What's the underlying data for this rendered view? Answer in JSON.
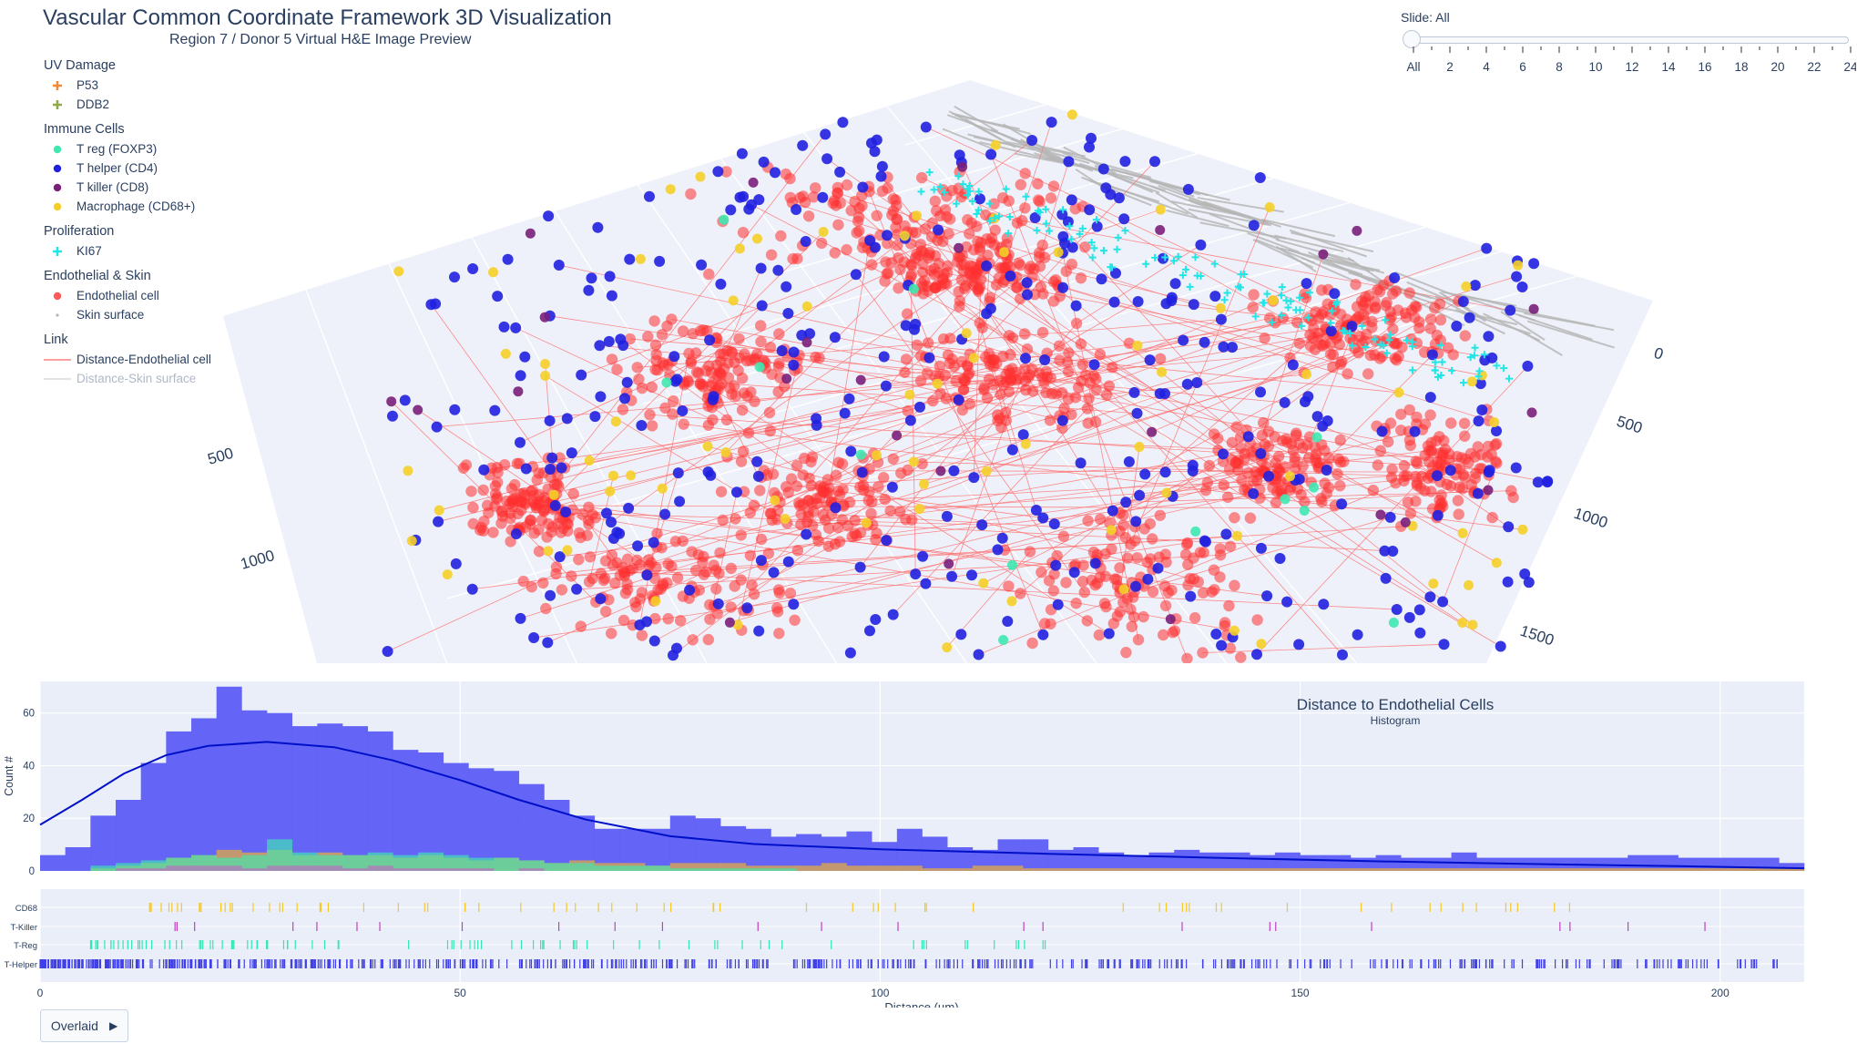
{
  "header": {
    "title": "Vascular Common Coordinate Framework 3D Visualization",
    "subtitle": "Region 7 / Donor 5  Virtual H&E Image Preview"
  },
  "colors": {
    "p53": "#ef8a3a",
    "ddb2": "#8fa84a",
    "treg": "#3ee8b0",
    "thelper": "#2020e0",
    "tkiller": "#7a1f7a",
    "macrophage": "#f5cf28",
    "ki67": "#22e6e6",
    "endothelial": "#ff3030",
    "skin": "#b5b5b5",
    "hist_main": "#5d5df5",
    "kde_line": "#0010c8"
  },
  "legend": [
    {
      "title": "UV Damage",
      "items": [
        {
          "label": "P53",
          "icon": "plus-icon",
          "color": "#ef8a3a"
        },
        {
          "label": "DDB2",
          "icon": "plus-icon",
          "color": "#8fa84a"
        }
      ]
    },
    {
      "title": "Immune Cells",
      "items": [
        {
          "label": "T reg (FOXP3)",
          "icon": "dot-icon",
          "color": "#3ee8b0"
        },
        {
          "label": "T helper (CD4)",
          "icon": "dot-icon",
          "color": "#2020e0"
        },
        {
          "label": "T killer (CD8)",
          "icon": "dot-icon",
          "color": "#7a1f7a"
        },
        {
          "label": "Macrophage (CD68+)",
          "icon": "dot-icon",
          "color": "#f5cf28"
        }
      ]
    },
    {
      "title": "Proliferation",
      "items": [
        {
          "label": "KI67",
          "icon": "plus-icon",
          "color": "#22e6e6"
        }
      ]
    },
    {
      "title": "Endothelial & Skin",
      "items": [
        {
          "label": "Endothelial cell",
          "icon": "dot-icon",
          "color": "#ff5a5a"
        },
        {
          "label": "Skin surface",
          "icon": "small-dot-icon",
          "color": "#b5b5b5"
        }
      ]
    },
    {
      "title": "Link",
      "items": [
        {
          "label": "Distance-Endothelial cell",
          "icon": "line-icon",
          "color": "#ff8080"
        },
        {
          "label": "Distance-Skin surface",
          "icon": "line-icon",
          "color": "#d8d8d8",
          "faded": true
        }
      ]
    }
  ],
  "slider": {
    "label": "Slide: All",
    "ticks": [
      "All",
      "2",
      "4",
      "6",
      "8",
      "10",
      "12",
      "14",
      "16",
      "18",
      "20",
      "22",
      "24"
    ]
  },
  "overlay_button": {
    "label": "Overlaid"
  },
  "chart_data": [
    {
      "type": "scatter",
      "name": "3d-cell-scatter",
      "axis_ticks_left": [
        "500",
        "1000"
      ],
      "axis_ticks_right": [
        "0",
        "500",
        "1000",
        "1500"
      ],
      "series": [
        {
          "name": "Endothelial cell",
          "color": "#ff3030"
        },
        {
          "name": "T helper (CD4)",
          "color": "#2020e0"
        },
        {
          "name": "Macrophage (CD68+)",
          "color": "#f5cf28"
        },
        {
          "name": "T reg (FOXP3)",
          "color": "#3ee8b0"
        },
        {
          "name": "T killer (CD8)",
          "color": "#7a1f7a"
        },
        {
          "name": "KI67",
          "color": "#22e6e6"
        },
        {
          "name": "Skin surface",
          "color": "#b5b5b5"
        }
      ]
    },
    {
      "type": "bar",
      "name": "histogram",
      "title": "Distance to Endothelial Cells",
      "subtitle": "Histogram",
      "xlabel": "Distance (µm)",
      "ylabel": "Count #",
      "xlim": [
        0,
        210
      ],
      "ylim": [
        0,
        72
      ],
      "yticks": [
        0,
        20,
        40,
        60
      ],
      "xticks": [
        0,
        50,
        100,
        150,
        200
      ],
      "bin_width": 3,
      "main_counts": [
        6,
        9,
        21,
        27,
        41,
        53,
        58,
        70,
        61,
        60,
        55,
        56,
        55,
        53,
        46,
        45,
        41,
        39,
        38,
        33,
        27,
        21,
        16,
        16,
        16,
        21,
        20,
        17,
        16,
        13,
        14,
        13,
        15,
        11,
        16,
        13,
        9,
        8,
        12,
        12,
        8,
        9,
        7,
        6,
        7,
        8,
        7,
        7,
        6,
        7,
        6,
        6,
        5,
        6,
        5,
        5,
        7,
        5,
        5,
        5,
        5,
        5,
        5,
        6,
        6,
        5,
        5,
        5,
        5,
        3
      ],
      "kde": [
        [
          0,
          17.5
        ],
        [
          5,
          27
        ],
        [
          10,
          37
        ],
        [
          15,
          44
        ],
        [
          20,
          47.5
        ],
        [
          27,
          49
        ],
        [
          35,
          47
        ],
        [
          42,
          42
        ],
        [
          50,
          34.5
        ],
        [
          57,
          27
        ],
        [
          65,
          19.5
        ],
        [
          75,
          13.2
        ],
        [
          85,
          10.2
        ],
        [
          100,
          8.2
        ],
        [
          120,
          6.5
        ],
        [
          140,
          5
        ],
        [
          160,
          3.6
        ],
        [
          180,
          2.5
        ],
        [
          195,
          1.8
        ],
        [
          210,
          1
        ]
      ],
      "overlays": [
        {
          "name": "CD68",
          "color": "#f5b428",
          "counts": [
            0,
            0,
            1,
            2,
            3,
            5,
            6,
            8,
            7,
            8,
            6,
            7,
            6,
            6,
            5,
            6,
            5,
            4,
            5,
            4,
            3,
            4,
            3,
            3,
            2,
            3,
            3,
            3,
            2,
            2,
            2,
            3,
            2,
            2,
            2,
            1,
            1,
            2,
            2,
            1,
            1,
            1,
            1,
            1,
            1,
            1,
            1,
            1,
            1,
            1,
            1,
            1,
            1,
            1,
            1,
            1,
            1,
            1,
            1,
            1,
            1,
            1,
            1,
            1,
            1,
            1,
            1,
            1,
            1,
            1
          ]
        },
        {
          "name": "T-Reg",
          "color": "#3ee8b0",
          "counts": [
            0,
            0,
            2,
            3,
            4,
            5,
            6,
            5,
            6,
            12,
            7,
            6,
            6,
            7,
            6,
            7,
            6,
            5,
            5,
            4,
            3,
            3,
            2,
            2,
            2,
            1,
            1,
            1,
            1,
            1,
            0,
            0,
            0,
            0,
            0,
            0,
            0,
            0,
            0,
            0,
            0,
            0,
            0,
            0,
            0,
            0,
            0,
            0,
            0,
            0,
            0,
            0,
            0,
            0,
            0,
            0,
            0,
            0,
            0,
            0,
            0,
            0,
            0,
            0,
            0,
            0,
            0,
            0,
            0,
            0
          ]
        },
        {
          "name": "T-Killer",
          "color": "#c06ac0",
          "counts": [
            0,
            0,
            0,
            1,
            1,
            2,
            2,
            2,
            1,
            2,
            2,
            2,
            1,
            2,
            1,
            1,
            1,
            1,
            0,
            1,
            0,
            0,
            0,
            0,
            0,
            0,
            0,
            0,
            0,
            0,
            0,
            0,
            0,
            0,
            0,
            0,
            0,
            0,
            0,
            0,
            0,
            0,
            0,
            0,
            0,
            0,
            0,
            0,
            0,
            0,
            0,
            0,
            0,
            0,
            0,
            0,
            0,
            0,
            0,
            0,
            0,
            0,
            0,
            0,
            0,
            0,
            0,
            0,
            0,
            0
          ]
        }
      ]
    },
    {
      "type": "scatter",
      "name": "rug-plot",
      "categories": [
        "CD68",
        "T-Killer",
        "T-Reg",
        "T-Helper"
      ],
      "colors": [
        "#f5c828",
        "#c040c0",
        "#30e8b0",
        "#4040e8"
      ],
      "xlabel": "Distance (µm)",
      "xticks": [
        0,
        50,
        100,
        150,
        200
      ]
    }
  ]
}
